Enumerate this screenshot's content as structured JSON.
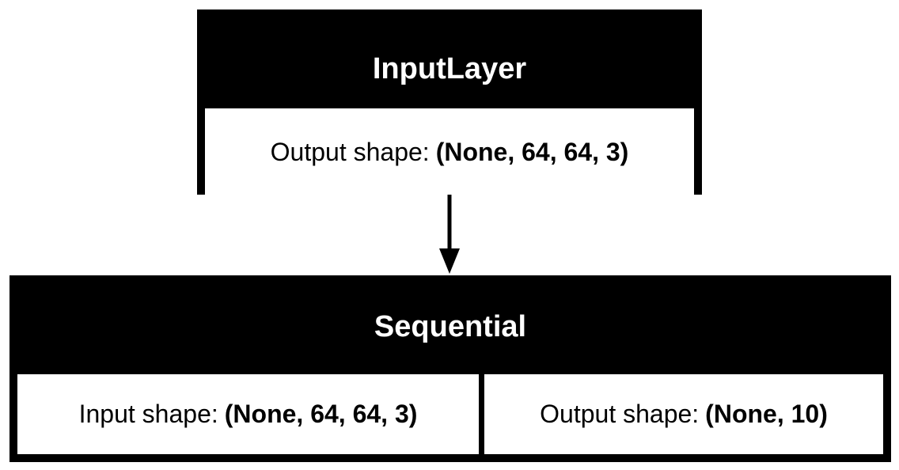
{
  "nodes": [
    {
      "title": "InputLayer",
      "cells": [
        {
          "label": "Output shape:",
          "value": "(None, 64, 64, 3)"
        }
      ]
    },
    {
      "title": "Sequential",
      "cells": [
        {
          "label": "Input shape:",
          "value": "(None, 64, 64, 3)"
        },
        {
          "label": "Output shape:",
          "value": "(None, 10)"
        }
      ]
    }
  ],
  "colors": {
    "node_fill": "#000000",
    "title_text": "#ffffff",
    "cell_fill": "#ffffff",
    "cell_text": "#000000",
    "edge": "#000000"
  }
}
